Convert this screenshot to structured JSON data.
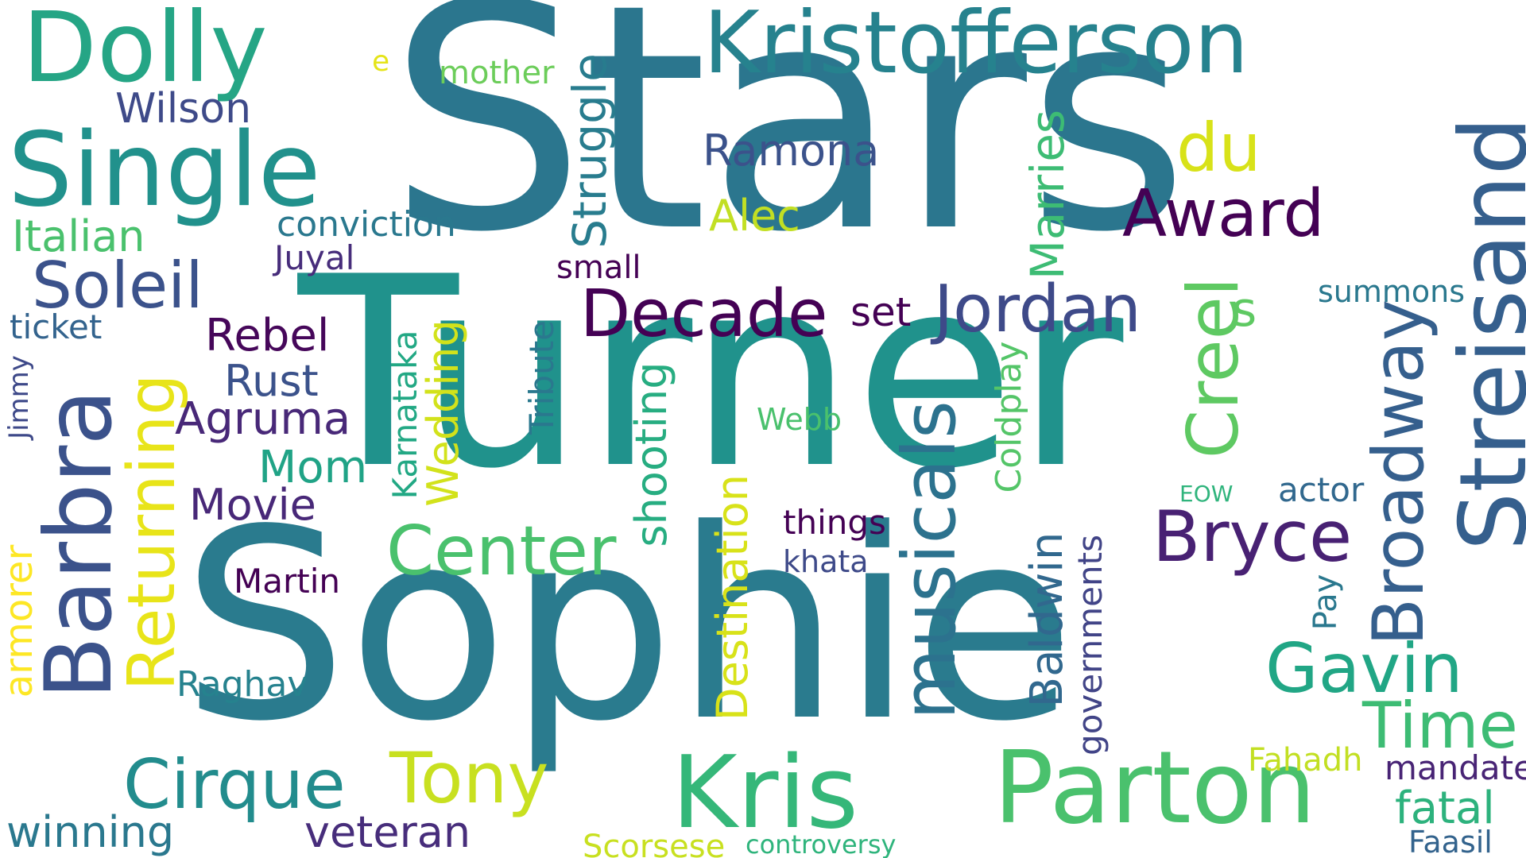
{
  "words": [
    {
      "text": "Stars",
      "color": "#2b768e"
    },
    {
      "text": "Turner",
      "color": "#20928c"
    },
    {
      "text": "Sophie",
      "color": "#2a7b8e"
    },
    {
      "text": "Dolly",
      "color": "#25a585"
    },
    {
      "text": "Kristofferson",
      "color": "#26828e"
    },
    {
      "text": "Single",
      "color": "#21918c"
    },
    {
      "text": "Streisand",
      "color": "#355f8d"
    },
    {
      "text": "Barbra",
      "color": "#3b528b"
    },
    {
      "text": "Award",
      "color": "#440154"
    },
    {
      "text": "Decade",
      "color": "#440154"
    },
    {
      "text": "Jordan",
      "color": "#3e4a89"
    },
    {
      "text": "Kris",
      "color": "#35b779"
    },
    {
      "text": "Parton",
      "color": "#4ac16d"
    },
    {
      "text": "Bryce",
      "color": "#482173"
    },
    {
      "text": "Center",
      "color": "#4ac16d"
    },
    {
      "text": "Cirque",
      "color": "#228c8d"
    },
    {
      "text": "Tony",
      "color": "#c8e020"
    },
    {
      "text": "Gavin",
      "color": "#21a685"
    },
    {
      "text": "Time",
      "color": "#3dbc74"
    },
    {
      "text": "musicals",
      "color": "#2c728e"
    },
    {
      "text": "Broadway",
      "color": "#355f8d"
    },
    {
      "text": "Creel",
      "color": "#5ec962"
    },
    {
      "text": "Returning",
      "color": "#e8e419"
    },
    {
      "text": "du",
      "color": "#d8e219"
    },
    {
      "text": "Soleil",
      "color": "#3b528b"
    },
    {
      "text": "Wilson",
      "color": "#3e4a89"
    },
    {
      "text": "Ramona",
      "color": "#3b528b"
    },
    {
      "text": "Alec",
      "color": "#c2df23"
    },
    {
      "text": "Rebel",
      "color": "#46075a"
    },
    {
      "text": "Rust",
      "color": "#3b528b"
    },
    {
      "text": "Agruma",
      "color": "#482878"
    },
    {
      "text": "Mom",
      "color": "#20a386"
    },
    {
      "text": "Movie",
      "color": "#482878"
    },
    {
      "text": "Italian",
      "color": "#4ac16d"
    },
    {
      "text": "conviction",
      "color": "#2a788e"
    },
    {
      "text": "Juyal",
      "color": "#472d7b"
    },
    {
      "text": "ticket",
      "color": "#33638d"
    },
    {
      "text": "Jimmy",
      "color": "#3e4989"
    },
    {
      "text": "armorer",
      "color": "#fde725"
    },
    {
      "text": "winning",
      "color": "#2a788e"
    },
    {
      "text": "veteran",
      "color": "#472d7b"
    },
    {
      "text": "Raghav",
      "color": "#26828e"
    },
    {
      "text": "Martin",
      "color": "#440154"
    },
    {
      "text": "mother",
      "color": "#6ccd5a"
    },
    {
      "text": "e",
      "color": "#e5e419"
    },
    {
      "text": "Struggle",
      "color": "#287c8e"
    },
    {
      "text": "Marries",
      "color": "#3dbc74"
    },
    {
      "text": "small",
      "color": "#440154"
    },
    {
      "text": "set",
      "color": "#440154"
    },
    {
      "text": "s",
      "color": "#5ec962"
    },
    {
      "text": "summons",
      "color": "#2a788e"
    },
    {
      "text": "Wedding",
      "color": "#d2e21b"
    },
    {
      "text": "Karnataka",
      "color": "#22a884"
    },
    {
      "text": "Tribute",
      "color": "#2a788e"
    },
    {
      "text": "shooting",
      "color": "#27ad81"
    },
    {
      "text": "Coldplay",
      "color": "#54c568"
    },
    {
      "text": "Webb",
      "color": "#4ac16d"
    },
    {
      "text": "Destination",
      "color": "#d8e219"
    },
    {
      "text": "things",
      "color": "#440154"
    },
    {
      "text": "khata",
      "color": "#3e4a89"
    },
    {
      "text": "Baldwin",
      "color": "#31688e"
    },
    {
      "text": "governments",
      "color": "#414487"
    },
    {
      "text": "EOW",
      "color": "#2fb47c"
    },
    {
      "text": "actor",
      "color": "#31688e"
    },
    {
      "text": "Pay",
      "color": "#2a788e"
    },
    {
      "text": "Fahadh",
      "color": "#c2df23"
    },
    {
      "text": "mandate",
      "color": "#482475"
    },
    {
      "text": "fatal",
      "color": "#2db27d"
    },
    {
      "text": "Faasil",
      "color": "#33638d"
    },
    {
      "text": "Scorsese",
      "color": "#c8e020"
    },
    {
      "text": "controversy",
      "color": "#2fb47c"
    }
  ]
}
